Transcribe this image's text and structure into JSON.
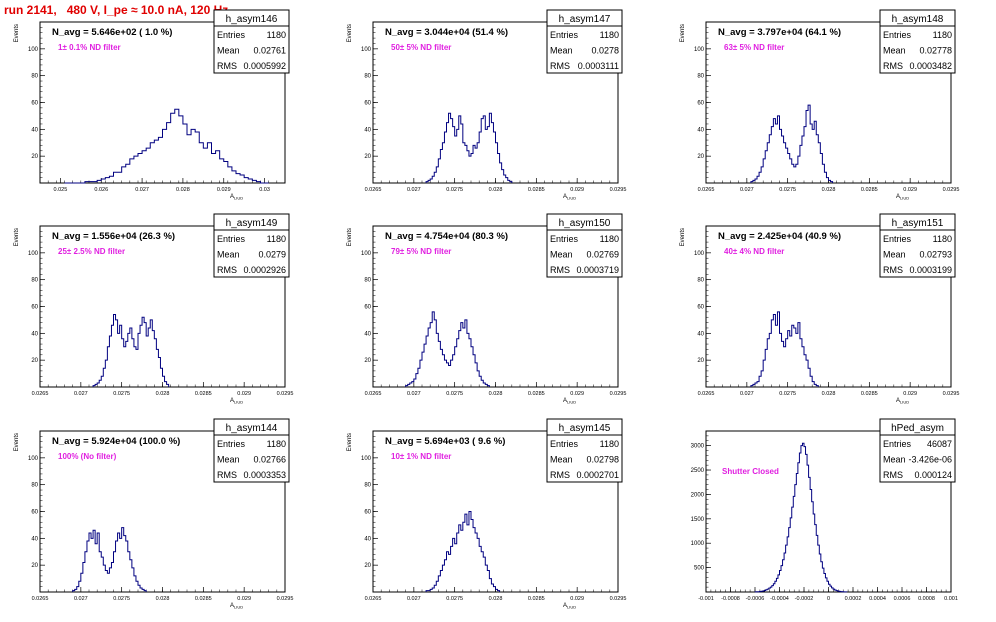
{
  "page_title": "run 2141,   480 V, I_pe ≈ 10.0 nA, 120 Hz",
  "chart_data": [
    {
      "type": "histogram",
      "name": "h_asym146",
      "ylabel": "Events",
      "xlabel": "A_LIUD",
      "header": "N_avg = 5.646e+02 ( 1.0 %)",
      "filter": "1± 0.1% ND filter",
      "stats": {
        "Entries": "1180",
        "Mean": "0.02761",
        "RMS": "0.0005992"
      },
      "xlim": [
        0.0245,
        0.0305
      ],
      "xticks": [
        "0.025",
        "0.026",
        "0.027",
        "0.028",
        "0.029",
        "0.03"
      ],
      "ylim": [
        0,
        120
      ],
      "yticks": [
        "20",
        "40",
        "60",
        "80",
        "100"
      ],
      "bins": {
        "start": 0.0251,
        "width": 0.0001,
        "counts": [
          0,
          0,
          0,
          0,
          0,
          1,
          1,
          1,
          2,
          3,
          4,
          5,
          8,
          8,
          12,
          14,
          18,
          20,
          22,
          24,
          26,
          30,
          32,
          34,
          40,
          45,
          52,
          55,
          50,
          44,
          36,
          40,
          38,
          30,
          26,
          30,
          22,
          24,
          18,
          16,
          12,
          9,
          7,
          6,
          4,
          3,
          2,
          1,
          0,
          0
        ]
      }
    },
    {
      "type": "histogram",
      "name": "h_asym147",
      "ylabel": "Events",
      "xlabel": "A_LIUD",
      "header": "N_avg = 3.044e+04 (51.4 %)",
      "filter": "50± 5% ND filter",
      "stats": {
        "Entries": "1180",
        "Mean": "0.0278",
        "RMS": "0.0003111"
      },
      "xlim": [
        0.0265,
        0.0295
      ],
      "xticks": [
        "0.0265",
        "0.027",
        "0.0275",
        "0.028",
        "0.0285",
        "0.029",
        "0.0295"
      ],
      "ylim": [
        0,
        120
      ],
      "yticks": [
        "20",
        "40",
        "60",
        "80",
        "100"
      ],
      "bins": {
        "start": 0.02715,
        "width": 2.5e-05,
        "counts": [
          1,
          2,
          3,
          5,
          8,
          12,
          18,
          25,
          30,
          38,
          45,
          52,
          48,
          42,
          35,
          40,
          50,
          44,
          30,
          28,
          24,
          20,
          22,
          28,
          26,
          30,
          38,
          48,
          50,
          40,
          42,
          52,
          45,
          38,
          30,
          22,
          15,
          10,
          6,
          4,
          2,
          1
        ]
      }
    },
    {
      "type": "histogram",
      "name": "h_asym148",
      "ylabel": "Events",
      "xlabel": "A_LIUD",
      "header": "N_avg = 3.797e+04 (64.1 %)",
      "filter": "63± 5% ND filter",
      "stats": {
        "Entries": "1180",
        "Mean": "0.02778",
        "RMS": "0.0003482"
      },
      "xlim": [
        0.0265,
        0.0295
      ],
      "xticks": [
        "0.0265",
        "0.027",
        "0.0275",
        "0.028",
        "0.0285",
        "0.029",
        "0.0295"
      ],
      "ylim": [
        0,
        120
      ],
      "yticks": [
        "20",
        "40",
        "60",
        "80",
        "100"
      ],
      "bins": {
        "start": 0.02705,
        "width": 2.5e-05,
        "counts": [
          1,
          2,
          3,
          5,
          8,
          12,
          18,
          24,
          30,
          36,
          42,
          48,
          44,
          50,
          40,
          35,
          30,
          26,
          22,
          18,
          14,
          12,
          14,
          20,
          28,
          35,
          42,
          54,
          58,
          44,
          40,
          46,
          36,
          30,
          22,
          14,
          8,
          4,
          2,
          1
        ]
      }
    },
    {
      "type": "histogram",
      "name": "h_asym149",
      "ylabel": "Events",
      "xlabel": "A_LIUD",
      "header": "N_avg = 1.556e+04 (26.3 %)",
      "filter": "25± 2.5% ND filter",
      "stats": {
        "Entries": "1180",
        "Mean": "0.0279",
        "RMS": "0.0002926"
      },
      "xlim": [
        0.0265,
        0.0295
      ],
      "xticks": [
        "0.0265",
        "0.027",
        "0.0275",
        "0.028",
        "0.0285",
        "0.029",
        "0.0295"
      ],
      "ylim": [
        0,
        120
      ],
      "yticks": [
        "20",
        "40",
        "60",
        "80",
        "100"
      ],
      "bins": {
        "start": 0.02715,
        "width": 2.5e-05,
        "counts": [
          1,
          2,
          3,
          5,
          8,
          14,
          20,
          30,
          38,
          46,
          54,
          50,
          40,
          46,
          36,
          30,
          34,
          40,
          44,
          36,
          30,
          28,
          40,
          46,
          52,
          48,
          38,
          44,
          50,
          42,
          36,
          28,
          22,
          14,
          8,
          4,
          2
        ]
      }
    },
    {
      "type": "histogram",
      "name": "h_asym150",
      "ylabel": "Events",
      "xlabel": "A_LIUD",
      "header": "N_avg = 4.754e+04 (80.3 %)",
      "filter": "79± 5% ND filter",
      "stats": {
        "Entries": "1180",
        "Mean": "0.02769",
        "RMS": "0.0003719"
      },
      "xlim": [
        0.0265,
        0.0295
      ],
      "xticks": [
        "0.0265",
        "0.027",
        "0.0275",
        "0.028",
        "0.0285",
        "0.029",
        "0.0295"
      ],
      "ylim": [
        0,
        120
      ],
      "yticks": [
        "20",
        "40",
        "60",
        "80",
        "100"
      ],
      "bins": {
        "start": 0.0269,
        "width": 2.5e-05,
        "counts": [
          1,
          2,
          3,
          4,
          6,
          10,
          14,
          20,
          26,
          32,
          38,
          44,
          48,
          56,
          50,
          40,
          34,
          28,
          24,
          20,
          18,
          16,
          20,
          24,
          30,
          36,
          42,
          48,
          44,
          50,
          40,
          36,
          30,
          24,
          18,
          12,
          8,
          5,
          3,
          2,
          1
        ]
      }
    },
    {
      "type": "histogram",
      "name": "h_asym151",
      "ylabel": "Events",
      "xlabel": "A_LIUD",
      "header": "N_avg = 2.425e+04 (40.9 %)",
      "filter": "40± 4% ND filter",
      "stats": {
        "Entries": "1180",
        "Mean": "0.02793",
        "RMS": "0.0003199"
      },
      "xlim": [
        0.0265,
        0.0295
      ],
      "xticks": [
        "0.0265",
        "0.027",
        "0.0275",
        "0.028",
        "0.0285",
        "0.029",
        "0.0295"
      ],
      "ylim": [
        0,
        120
      ],
      "yticks": [
        "20",
        "40",
        "60",
        "80",
        "100"
      ],
      "bins": {
        "start": 0.02705,
        "width": 2.5e-05,
        "counts": [
          1,
          2,
          3,
          4,
          8,
          12,
          20,
          28,
          36,
          40,
          50,
          54,
          46,
          56,
          40,
          34,
          30,
          36,
          42,
          38,
          46,
          44,
          40,
          48,
          36,
          30,
          24,
          20,
          14,
          8,
          4,
          2,
          1
        ]
      }
    },
    {
      "type": "histogram",
      "name": "h_asym144",
      "ylabel": "Events",
      "xlabel": "A_LIUD",
      "header": "N_avg = 5.924e+04 (100.0 %)",
      "filter": "100% (No filter)",
      "stats": {
        "Entries": "1180",
        "Mean": "0.02766",
        "RMS": "0.0003353"
      },
      "xlim": [
        0.0265,
        0.0295
      ],
      "xticks": [
        "0.0265",
        "0.027",
        "0.0275",
        "0.028",
        "0.0285",
        "0.029",
        "0.0295"
      ],
      "ylim": [
        0,
        120
      ],
      "yticks": [
        "20",
        "40",
        "60",
        "80",
        "100"
      ],
      "bins": {
        "start": 0.0269,
        "width": 2.5e-05,
        "counts": [
          1,
          2,
          4,
          8,
          14,
          22,
          30,
          38,
          44,
          40,
          46,
          36,
          44,
          30,
          26,
          20,
          16,
          14,
          18,
          22,
          30,
          38,
          44,
          40,
          48,
          42,
          38,
          30,
          24,
          18,
          12,
          8,
          5,
          3,
          2,
          1
        ]
      }
    },
    {
      "type": "histogram",
      "name": "h_asym145",
      "ylabel": "Events",
      "xlabel": "A_LIUD",
      "header": "N_avg = 5.694e+03 ( 9.6 %)",
      "filter": "10± 1% ND filter",
      "stats": {
        "Entries": "1180",
        "Mean": "0.02798",
        "RMS": "0.0002701"
      },
      "xlim": [
        0.0265,
        0.0295
      ],
      "xticks": [
        "0.0265",
        "0.027",
        "0.0275",
        "0.028",
        "0.0285",
        "0.029",
        "0.0295"
      ],
      "ylim": [
        0,
        120
      ],
      "yticks": [
        "20",
        "40",
        "60",
        "80",
        "100"
      ],
      "bins": {
        "start": 0.02715,
        "width": 2.5e-05,
        "counts": [
          1,
          1,
          2,
          3,
          5,
          8,
          12,
          16,
          20,
          24,
          30,
          28,
          34,
          40,
          36,
          44,
          50,
          46,
          52,
          58,
          50,
          60,
          54,
          48,
          44,
          40,
          34,
          30,
          26,
          20,
          16,
          10,
          6,
          4,
          2,
          1
        ]
      }
    },
    {
      "type": "histogram",
      "name": "hPed_asym",
      "ylabel": "",
      "xlabel": "",
      "header": "",
      "filter": "Shutter Closed",
      "stats": {
        "Entries": "46087",
        "Mean": "-3.426e-06",
        "RMS": "0.000124"
      },
      "xlim": [
        -0.001,
        0.001
      ],
      "xticks": [
        "-0.001",
        "-0.0008",
        "-0.0006",
        "-0.0004",
        "-0.0002",
        "0",
        "0.0002",
        "0.0004",
        "0.0006",
        "0.0008",
        "0.001"
      ],
      "ylim": [
        0,
        3300
      ],
      "yticks": [
        "500",
        "1000",
        "1500",
        "2000",
        "2500",
        "3000"
      ],
      "bins": {
        "start": -0.0006,
        "width": 1.25e-05,
        "counts": [
          2,
          4,
          6,
          10,
          15,
          20,
          30,
          45,
          60,
          80,
          100,
          130,
          170,
          220,
          280,
          350,
          440,
          540,
          660,
          800,
          960,
          1130,
          1320,
          1520,
          1740,
          1960,
          2200,
          2430,
          2650,
          2850,
          3000,
          3050,
          2980,
          2820,
          2600,
          2350,
          2100,
          1850,
          1600,
          1380,
          1160,
          960,
          780,
          620,
          490,
          380,
          290,
          220,
          160,
          120,
          85,
          60,
          40,
          28,
          18,
          12,
          8,
          5,
          3,
          2
        ]
      }
    }
  ]
}
